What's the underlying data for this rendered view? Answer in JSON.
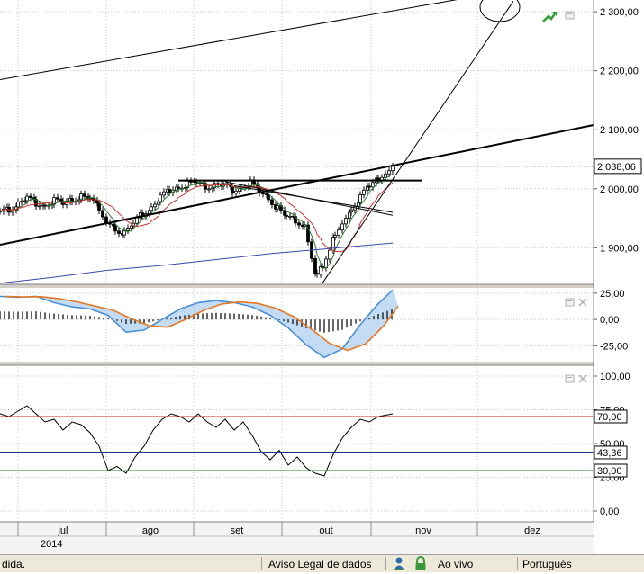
{
  "colors": {
    "price": "#000000",
    "trendline": "#000000",
    "ma_fast": "#2e7d32",
    "ma_mid": "#d32f2f",
    "ma_slow": "#3949ab",
    "macd_line": "#4a90d9",
    "signal_line": "#e87722",
    "rsi_upper": "#c62828",
    "rsi_mid": "#1a3a8f",
    "rsi_lower": "#2e7d32",
    "grid": "#c8c8c8",
    "axis_bg": "#f0f0f0"
  },
  "icons": {
    "trend_up": "trend-up-icon",
    "panel_restore": "window-restore-icon",
    "panel_close": "close-icon",
    "publish": "person-globe-icon",
    "lock": "lock-icon"
  },
  "chart_data": [
    {
      "type": "line",
      "panel": "price",
      "y_ticks": [
        "2 300,00",
        "2 200,00",
        "2 100,00",
        "2 000,00",
        "1 900,00"
      ],
      "y_tick_values": [
        2300,
        2200,
        2100,
        2000,
        1900
      ],
      "ylim": [
        1838,
        2320
      ],
      "last_value_label": "2 038,06",
      "last_value": 2038.06,
      "grid": true
    },
    {
      "type": "line",
      "panel": "macd",
      "y_ticks": [
        "25,00",
        "0,00",
        "-25,00"
      ],
      "y_tick_values": [
        25,
        0,
        -25
      ],
      "ylim": [
        -40,
        30
      ],
      "grid": true
    },
    {
      "type": "line",
      "panel": "rsi",
      "y_ticks": [
        "100,00",
        "75,00",
        "50,00",
        "25,00",
        "0,00"
      ],
      "y_tick_values": [
        100,
        75,
        50,
        25,
        0
      ],
      "ylim": [
        -8,
        108
      ],
      "levels": [
        {
          "label": "70,00",
          "value": 70
        },
        {
          "label": "43,36",
          "value": 43.36
        },
        {
          "label": "30,00",
          "value": 30
        }
      ],
      "grid": true
    }
  ],
  "x_axis": {
    "months": [
      "jul",
      "ago",
      "set",
      "out",
      "nov",
      "dez"
    ],
    "year": "2014"
  },
  "status_bar": {
    "left_text": "dida.",
    "legal": "Aviso Legal de dados",
    "live": "Ao vivo",
    "language": "Português"
  }
}
